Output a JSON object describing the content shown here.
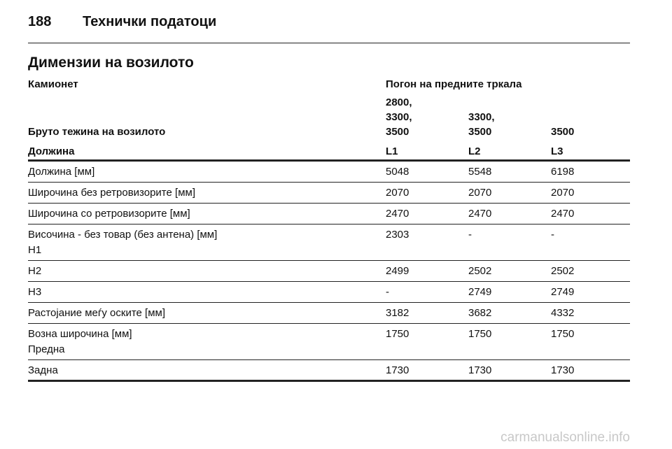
{
  "header": {
    "page_number": "188",
    "title": "Технички податоци"
  },
  "section_title": "Димензии на возилото",
  "table": {
    "heading": [
      "Камионет",
      "Погон на предните тркала"
    ],
    "weight_row": {
      "label": "Бруто тежина на возилото",
      "cells": [
        [
          "2800,",
          "3300,",
          "3500"
        ],
        [
          "3300,",
          "3500"
        ],
        [
          "3500"
        ]
      ]
    },
    "column_row": [
      "Должина",
      "L1",
      "L2",
      "L3"
    ],
    "rows": [
      [
        [
          "Должина [мм]"
        ],
        "5048",
        "5548",
        "6198"
      ],
      [
        [
          "Широчина без ретровизорите [мм]"
        ],
        "2070",
        "2070",
        "2070"
      ],
      [
        [
          "Широчина со ретровизорите [мм]"
        ],
        "2470",
        "2470",
        "2470"
      ],
      [
        [
          "Височина - без товар (без антена) [мм]",
          "H1"
        ],
        "2303",
        "-",
        "-"
      ],
      [
        [
          "H2"
        ],
        "2499",
        "2502",
        "2502"
      ],
      [
        [
          "H3"
        ],
        "-",
        "2749",
        "2749"
      ],
      [
        [
          "Растојание меѓу оските [мм]"
        ],
        "3182",
        "3682",
        "4332"
      ],
      [
        [
          "Возна широчина [мм]",
          "Предна"
        ],
        "1750",
        "1750",
        "1750"
      ],
      [
        [
          "Задна"
        ],
        "1730",
        "1730",
        "1730"
      ]
    ]
  },
  "watermark": "carmanualsonline.info"
}
